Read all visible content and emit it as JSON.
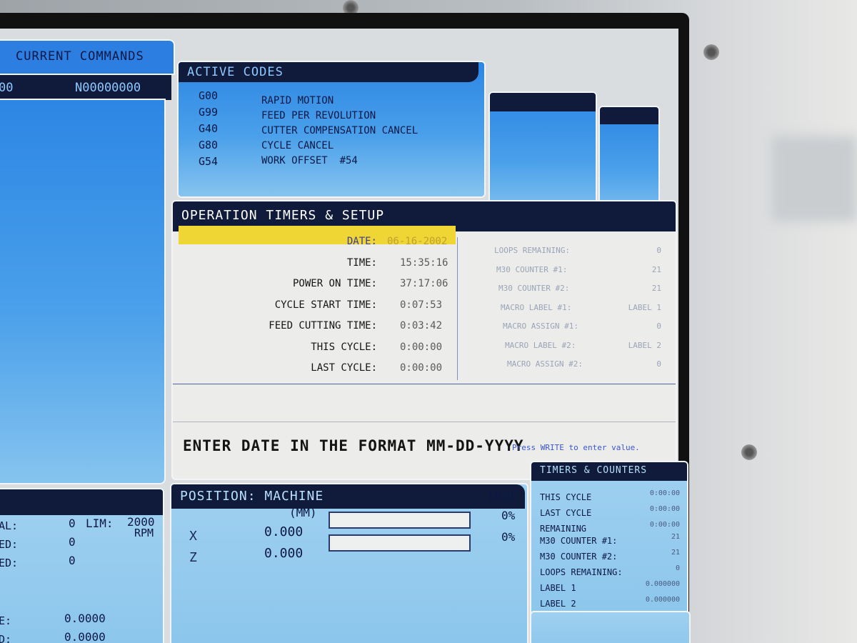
{
  "current_commands": {
    "title": "CURRENT COMMANDS",
    "left": "00",
    "program": "N00000000"
  },
  "active_codes": {
    "title": "ACTIVE CODES",
    "codes": [
      {
        "code": "G00",
        "desc": "RAPID MOTION"
      },
      {
        "code": "G99",
        "desc": "FEED PER REVOLUTION"
      },
      {
        "code": "G40",
        "desc": "CUTTER COMPENSATION CANCEL"
      },
      {
        "code": "G80",
        "desc": "CYCLE CANCEL"
      },
      {
        "code": "G54",
        "desc": "WORK OFFSET  #54"
      }
    ]
  },
  "operation_timers": {
    "title": "OPERATION TIMERS & SETUP",
    "rows": [
      {
        "label": "DATE:",
        "value": "06-16-2002"
      },
      {
        "label": "TIME:",
        "value": "15:35:16"
      },
      {
        "label": "POWER ON TIME:",
        "value": "37:17:06"
      },
      {
        "label": "CYCLE START TIME:",
        "value": "0:07:53"
      },
      {
        "label": "FEED CUTTING TIME:",
        "value": "0:03:42"
      },
      {
        "label": "THIS CYCLE:",
        "value": "0:00:00"
      },
      {
        "label": "LAST CYCLE:",
        "value": "0:00:00"
      }
    ],
    "settings": [
      {
        "label": "LOOPS REMAINING:",
        "value": "0"
      },
      {
        "label": "M30 COUNTER #1:",
        "value": "21"
      },
      {
        "label": "M30 COUNTER #2:",
        "value": "21"
      },
      {
        "label": "MACRO LABEL #1:",
        "value": "LABEL 1"
      },
      {
        "label": "MACRO ASSIGN #1:",
        "value": "0"
      },
      {
        "label": "MACRO LABEL #2:",
        "value": "LABEL 2"
      },
      {
        "label": "MACRO ASSIGN #2:",
        "value": "0"
      }
    ],
    "prompt": "ENTER DATE IN THE FORMAT MM-DD-YYYY",
    "hint": "Press WRITE to enter value."
  },
  "position": {
    "title": "POSITION: MACHINE",
    "unit": "(MM)",
    "load_label": "LOAD",
    "axes": [
      {
        "axis": "X",
        "value": "0.000",
        "load": "0%"
      },
      {
        "axis": "Z",
        "value": "0.000",
        "load": "0%"
      }
    ]
  },
  "spindle": {
    "rows": [
      {
        "label": "AL:",
        "value": "0",
        "extra": "LIM:",
        "extra_value": "2000"
      },
      {
        "label": "ED:",
        "value": "0",
        "unit": "RPM"
      },
      {
        "label": "ED:",
        "value": "0"
      },
      {
        "label": "E:",
        "value": "0.0000"
      },
      {
        "label": "D:",
        "value": "0.0000"
      }
    ]
  },
  "timers_counters": {
    "title": "TIMERS & COUNTERS",
    "rows": [
      {
        "label": "THIS CYCLE",
        "value": "0:00:00"
      },
      {
        "label": "LAST CYCLE",
        "value": "0:00:00"
      },
      {
        "label": "REMAINING",
        "value": "0:00:00"
      },
      {
        "label": "M30 COUNTER #1:",
        "value": "21"
      },
      {
        "label": "M30 COUNTER #2:",
        "value": "21"
      },
      {
        "label": "LOOPS REMAINING:",
        "value": "0"
      },
      {
        "label": "LABEL 1",
        "value": "0.000000"
      },
      {
        "label": "LABEL 2",
        "value": "0.000000"
      }
    ]
  }
}
